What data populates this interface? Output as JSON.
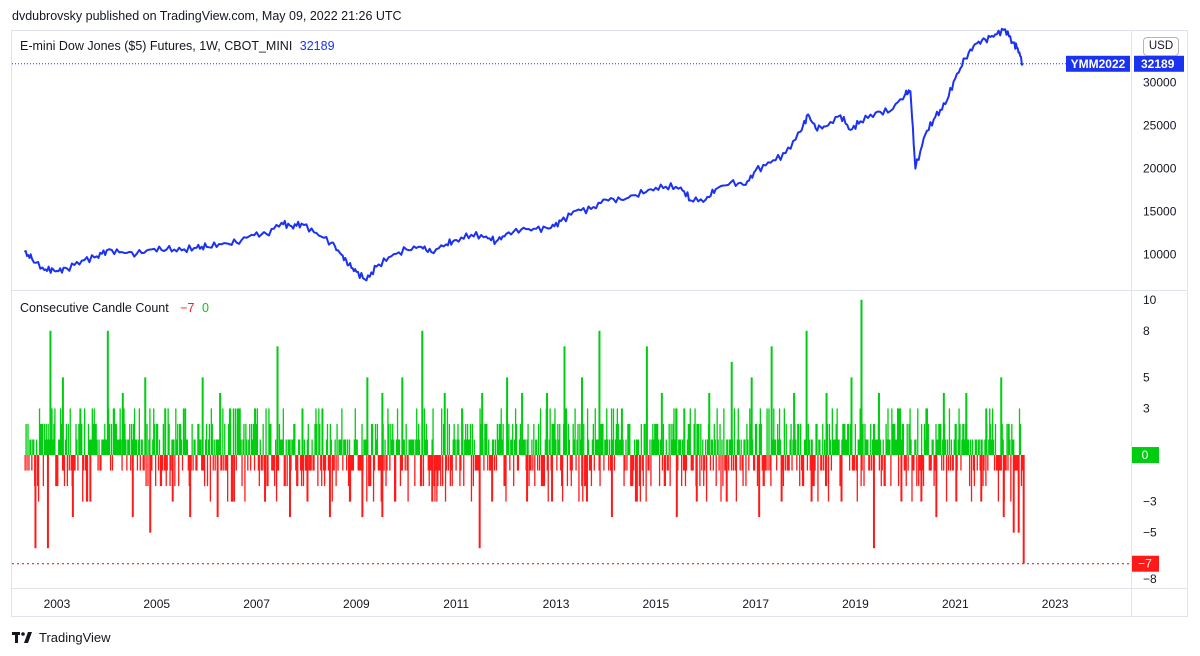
{
  "header": {
    "text": "dvdubrovsky published on TradingView.com, May 09, 2022 21:26 UTC"
  },
  "price_pane": {
    "legend_title": "E-mini Dow Jones ($5) Futures, 1W, CBOT_MINI",
    "legend_value": "32189",
    "currency_button": "USD",
    "symbol_tag": "YMM2022",
    "last_price": "32189",
    "line_color": "#1b32f0"
  },
  "indicator_pane": {
    "legend_title": "Consecutive Candle Count",
    "legend_value_neg": "−7",
    "legend_value_pos": "0",
    "zero_tag": "0",
    "last_tag": "−7",
    "up_color": "#00cc11",
    "down_color": "#ff1a1a"
  },
  "footer": {
    "brand": "TradingView"
  },
  "chart_data": [
    {
      "type": "line",
      "title": "E-mini Dow Jones ($5) Futures, 1W, CBOT_MINI",
      "y_ticks": [
        "10000",
        "15000",
        "20000",
        "25000",
        "30000"
      ],
      "ylim": [
        6000,
        36000
      ],
      "x_ticks": [
        "2003",
        "2005",
        "2007",
        "2009",
        "2011",
        "2013",
        "2015",
        "2017",
        "2019",
        "2021",
        "2023"
      ],
      "xlim": [
        2002.1,
        2024.5
      ],
      "series": [
        {
          "x": [
            2002.35,
            2002.5,
            2002.75,
            2002.85,
            2003.0,
            2003.2,
            2003.5,
            2003.8,
            2004.0,
            2004.3,
            2004.6,
            2004.9,
            2005.2,
            2005.5,
            2005.8,
            2006.0,
            2006.3,
            2006.6,
            2006.9,
            2007.2,
            2007.5,
            2007.7,
            2007.9,
            2008.2,
            2008.5,
            2008.7,
            2008.85,
            2009.0,
            2009.2,
            2009.4,
            2009.7,
            2010.0,
            2010.3,
            2010.5,
            2010.8,
            2011.0,
            2011.3,
            2011.6,
            2011.8,
            2012.0,
            2012.3,
            2012.6,
            2012.9,
            2013.1,
            2013.4,
            2013.7,
            2014.0,
            2014.3,
            2014.6,
            2014.9,
            2015.2,
            2015.5,
            2015.7,
            2016.0,
            2016.2,
            2016.5,
            2016.8,
            2017.0,
            2017.3,
            2017.6,
            2017.9,
            2018.05,
            2018.2,
            2018.4,
            2018.7,
            2018.9,
            2019.1,
            2019.4,
            2019.7,
            2020.0,
            2020.1,
            2020.2,
            2020.4,
            2020.6,
            2020.8,
            2021.0,
            2021.2,
            2021.4,
            2021.6,
            2021.8,
            2022.0,
            2022.15,
            2022.25,
            2022.35
          ],
          "y": [
            10300,
            9500,
            8200,
            8300,
            8100,
            8400,
            9300,
            9800,
            10500,
            10300,
            10100,
            10600,
            10600,
            10500,
            10800,
            10900,
            11200,
            11400,
            12300,
            12400,
            13700,
            13300,
            13600,
            12500,
            11400,
            10000,
            8800,
            8000,
            7000,
            8600,
            9800,
            10600,
            10900,
            10300,
            11200,
            11700,
            12300,
            12100,
            11500,
            12400,
            12900,
            13000,
            13100,
            13900,
            15100,
            15300,
            16400,
            16400,
            16900,
            17600,
            17900,
            17800,
            16300,
            16400,
            17600,
            18400,
            18100,
            19800,
            20700,
            21800,
            24300,
            26300,
            24700,
            24900,
            26200,
            24500,
            25500,
            26500,
            26700,
            28700,
            29000,
            20000,
            24000,
            26000,
            27500,
            30500,
            32800,
            34500,
            35000,
            35600,
            36200,
            34700,
            34000,
            32189
          ]
        }
      ]
    },
    {
      "type": "bar",
      "title": "Consecutive Candle Count",
      "y_ticks": [
        "10",
        "8",
        "5",
        "3",
        "0",
        "−3",
        "−5",
        "−8"
      ],
      "ylim": [
        -8.5,
        10.5
      ],
      "up_color": "#00cc11",
      "down_color": "#ff1a1a",
      "positive_spikes": [
        {
          "x": 2002.85,
          "v": 8
        },
        {
          "x": 2003.1,
          "v": 5
        },
        {
          "x": 2003.45,
          "v": 3
        },
        {
          "x": 2004.0,
          "v": 8
        },
        {
          "x": 2004.3,
          "v": 4
        },
        {
          "x": 2004.75,
          "v": 5
        },
        {
          "x": 2005.15,
          "v": 3
        },
        {
          "x": 2005.55,
          "v": 3
        },
        {
          "x": 2005.9,
          "v": 5
        },
        {
          "x": 2006.25,
          "v": 4
        },
        {
          "x": 2006.6,
          "v": 3
        },
        {
          "x": 2006.95,
          "v": 3
        },
        {
          "x": 2007.4,
          "v": 7
        },
        {
          "x": 2007.9,
          "v": 3
        },
        {
          "x": 2008.3,
          "v": 3
        },
        {
          "x": 2009.2,
          "v": 5
        },
        {
          "x": 2009.5,
          "v": 4
        },
        {
          "x": 2009.9,
          "v": 5
        },
        {
          "x": 2010.3,
          "v": 8
        },
        {
          "x": 2010.75,
          "v": 4
        },
        {
          "x": 2011.1,
          "v": 3
        },
        {
          "x": 2011.5,
          "v": 4
        },
        {
          "x": 2012.0,
          "v": 5
        },
        {
          "x": 2012.3,
          "v": 4
        },
        {
          "x": 2012.8,
          "v": 4
        },
        {
          "x": 2013.15,
          "v": 7
        },
        {
          "x": 2013.5,
          "v": 5
        },
        {
          "x": 2013.85,
          "v": 8
        },
        {
          "x": 2014.3,
          "v": 3
        },
        {
          "x": 2014.8,
          "v": 7
        },
        {
          "x": 2015.1,
          "v": 4
        },
        {
          "x": 2015.55,
          "v": 3
        },
        {
          "x": 2016.05,
          "v": 4
        },
        {
          "x": 2016.5,
          "v": 6
        },
        {
          "x": 2016.9,
          "v": 5
        },
        {
          "x": 2017.3,
          "v": 7
        },
        {
          "x": 2017.75,
          "v": 4
        },
        {
          "x": 2018.0,
          "v": 8
        },
        {
          "x": 2018.4,
          "v": 4
        },
        {
          "x": 2018.9,
          "v": 5
        },
        {
          "x": 2019.1,
          "v": 10
        },
        {
          "x": 2019.45,
          "v": 4
        },
        {
          "x": 2019.85,
          "v": 3
        },
        {
          "x": 2020.4,
          "v": 3
        },
        {
          "x": 2020.75,
          "v": 4
        },
        {
          "x": 2021.2,
          "v": 4
        },
        {
          "x": 2021.6,
          "v": 3
        },
        {
          "x": 2021.9,
          "v": 5
        },
        {
          "x": 2022.05,
          "v": 2
        }
      ],
      "negative_spikes": [
        {
          "x": 2002.55,
          "v": -6
        },
        {
          "x": 2002.8,
          "v": -6
        },
        {
          "x": 2003.3,
          "v": -4
        },
        {
          "x": 2003.65,
          "v": -3
        },
        {
          "x": 2004.5,
          "v": -4
        },
        {
          "x": 2004.85,
          "v": -5
        },
        {
          "x": 2005.3,
          "v": -3
        },
        {
          "x": 2005.65,
          "v": -4
        },
        {
          "x": 2006.2,
          "v": -4
        },
        {
          "x": 2006.5,
          "v": -3
        },
        {
          "x": 2007.15,
          "v": -3
        },
        {
          "x": 2007.65,
          "v": -4
        },
        {
          "x": 2008.0,
          "v": -3
        },
        {
          "x": 2008.45,
          "v": -4
        },
        {
          "x": 2008.85,
          "v": -3
        },
        {
          "x": 2009.1,
          "v": -4
        },
        {
          "x": 2009.5,
          "v": -4
        },
        {
          "x": 2010.5,
          "v": -3
        },
        {
          "x": 2011.45,
          "v": -6
        },
        {
          "x": 2011.7,
          "v": -3
        },
        {
          "x": 2012.4,
          "v": -3
        },
        {
          "x": 2012.9,
          "v": -3
        },
        {
          "x": 2013.6,
          "v": -3
        },
        {
          "x": 2014.1,
          "v": -4
        },
        {
          "x": 2014.6,
          "v": -3
        },
        {
          "x": 2015.4,
          "v": -4
        },
        {
          "x": 2015.8,
          "v": -3
        },
        {
          "x": 2016.4,
          "v": -3
        },
        {
          "x": 2017.05,
          "v": -4
        },
        {
          "x": 2017.5,
          "v": -3
        },
        {
          "x": 2018.1,
          "v": -3
        },
        {
          "x": 2018.7,
          "v": -3
        },
        {
          "x": 2019.35,
          "v": -6
        },
        {
          "x": 2019.9,
          "v": -3
        },
        {
          "x": 2020.3,
          "v": -3
        },
        {
          "x": 2020.6,
          "v": -4
        },
        {
          "x": 2021.0,
          "v": -3
        },
        {
          "x": 2021.5,
          "v": -3
        },
        {
          "x": 2021.95,
          "v": -4
        },
        {
          "x": 2022.15,
          "v": -5
        },
        {
          "x": 2022.25,
          "v": -5
        },
        {
          "x": 2022.35,
          "v": -7
        }
      ],
      "last_value": -7
    }
  ]
}
